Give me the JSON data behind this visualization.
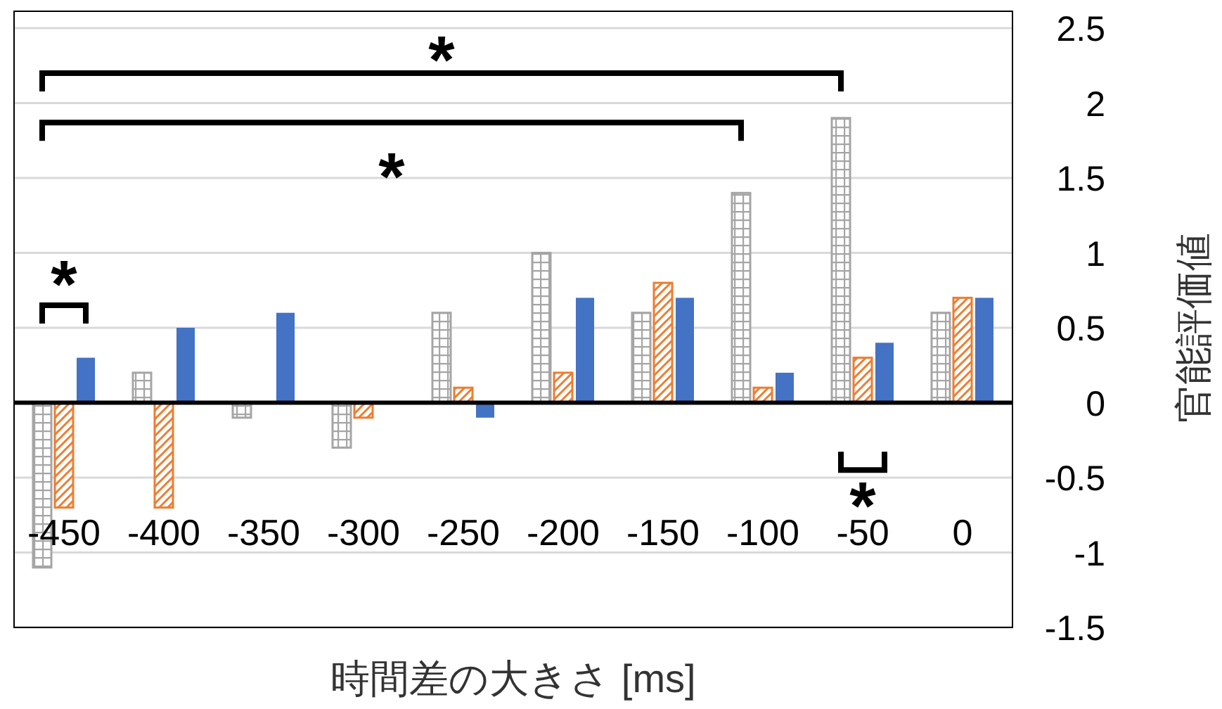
{
  "chart_data": {
    "type": "bar",
    "xlabel": "時間差の大きさ [ms]",
    "ylabel": "官能評価値",
    "categories": [
      "-450",
      "-400",
      "-350",
      "-300",
      "-250",
      "-200",
      "-150",
      "-100",
      "-50",
      "0"
    ],
    "series": [
      {
        "color": "#a5a5a5",
        "values": [
          -1.1,
          0.2,
          -0.1,
          -0.3,
          0.6,
          1.0,
          0.6,
          1.4,
          1.9,
          0.6
        ]
      },
      {
        "color": "#ed7d31",
        "values": [
          -0.7,
          -0.7,
          0,
          -0.1,
          0.1,
          0.2,
          0.8,
          0.1,
          0.3,
          0.7
        ]
      },
      {
        "color": "#4472c4",
        "values": [
          0.3,
          0.5,
          0.6,
          0,
          -0.1,
          0.7,
          0.7,
          0.2,
          0.4,
          0.7
        ]
      }
    ],
    "ylim": [
      -1.5,
      2.5
    ],
    "yticks": [
      -1.5,
      -1,
      -0.5,
      0,
      0.5,
      1,
      1.5,
      2,
      2.5
    ],
    "grid": "y",
    "annotations": [
      "*",
      "*",
      "*",
      "*"
    ]
  }
}
